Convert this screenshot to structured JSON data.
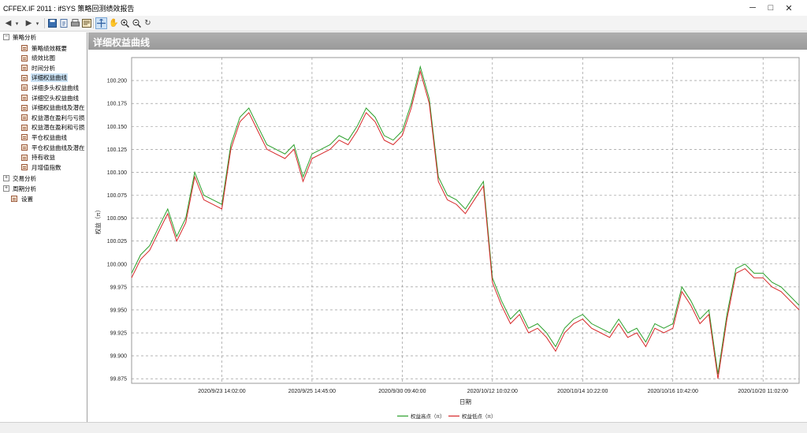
{
  "window": {
    "title": "CFFEX.IF 2011 : ifSYS 策略回测绩效报告"
  },
  "sidebar": {
    "root": "策略分析",
    "items": [
      "策略绩效概要",
      "绩效比图",
      "时间分析",
      "详细权益曲线",
      "详细多头权益曲线",
      "详细空头权益曲线",
      "详细权益曲线及潜在",
      "权益潜在盈利与亏损",
      "权益潜在盈利和亏损",
      "平仓权益曲线",
      "平仓权益曲线及潜在",
      "持有收益",
      "月增值指数"
    ],
    "groups": [
      "交易分析",
      "周期分析"
    ],
    "settings": "设置"
  },
  "panel": {
    "title": "详细权益曲线"
  },
  "chart_data": {
    "type": "line",
    "ylabel": "权益（π）",
    "xlabel": "日期",
    "ylim": [
      99.87,
      100.225
    ],
    "yticks": [
      "100.200",
      "100.175",
      "100.150",
      "100.125",
      "100.100",
      "100.075",
      "100.050",
      "100.025",
      "100.000",
      "99.975",
      "99.950",
      "99.925",
      "99.900",
      "99.875"
    ],
    "xticks": [
      "2020/9/23 14:02:00",
      "2020/9/25 14:45:00",
      "2020/9/30 09:40:00",
      "2020/10/12 10:02:00",
      "2020/10/14 10:22:00",
      "2020/10/16 10:42:00",
      "2020/10/20 11:02:00"
    ],
    "xtick_index": [
      10,
      20,
      30,
      40,
      50,
      60,
      70
    ],
    "grid": true,
    "legend": "bottom",
    "series": [
      {
        "name": "权益高点（π）",
        "color": "#2ca02c",
        "values": [
          99.99,
          100.01,
          100.02,
          100.04,
          100.06,
          100.03,
          100.05,
          100.1,
          100.075,
          100.07,
          100.065,
          100.13,
          100.16,
          100.17,
          100.15,
          100.13,
          100.125,
          100.12,
          100.13,
          100.095,
          100.12,
          100.125,
          100.13,
          100.14,
          100.135,
          100.15,
          100.17,
          100.16,
          100.14,
          100.135,
          100.145,
          100.175,
          100.215,
          100.18,
          100.095,
          100.075,
          100.07,
          100.06,
          100.075,
          100.09,
          99.985,
          99.96,
          99.94,
          99.95,
          99.93,
          99.935,
          99.925,
          99.91,
          99.93,
          99.94,
          99.945,
          99.935,
          99.93,
          99.925,
          99.94,
          99.925,
          99.93,
          99.915,
          99.935,
          99.93,
          99.935,
          99.975,
          99.96,
          99.94,
          99.95,
          99.88,
          99.945,
          99.995,
          100.0,
          99.99,
          99.99,
          99.98,
          99.975,
          99.965,
          99.955
        ]
      },
      {
        "name": "权益低点（π）",
        "color": "#d62728",
        "values": [
          99.985,
          100.005,
          100.015,
          100.035,
          100.055,
          100.025,
          100.045,
          100.095,
          100.07,
          100.065,
          100.06,
          100.125,
          100.155,
          100.165,
          100.145,
          100.125,
          100.12,
          100.115,
          100.125,
          100.09,
          100.115,
          100.12,
          100.125,
          100.135,
          100.13,
          100.145,
          100.165,
          100.155,
          100.135,
          100.13,
          100.14,
          100.17,
          100.21,
          100.175,
          100.09,
          100.07,
          100.065,
          100.055,
          100.07,
          100.085,
          99.98,
          99.955,
          99.935,
          99.945,
          99.925,
          99.93,
          99.92,
          99.905,
          99.925,
          99.935,
          99.94,
          99.93,
          99.925,
          99.92,
          99.935,
          99.92,
          99.925,
          99.91,
          99.93,
          99.925,
          99.93,
          99.97,
          99.955,
          99.935,
          99.945,
          99.875,
          99.94,
          99.99,
          99.995,
          99.985,
          99.985,
          99.975,
          99.97,
          99.96,
          99.95
        ]
      }
    ]
  }
}
